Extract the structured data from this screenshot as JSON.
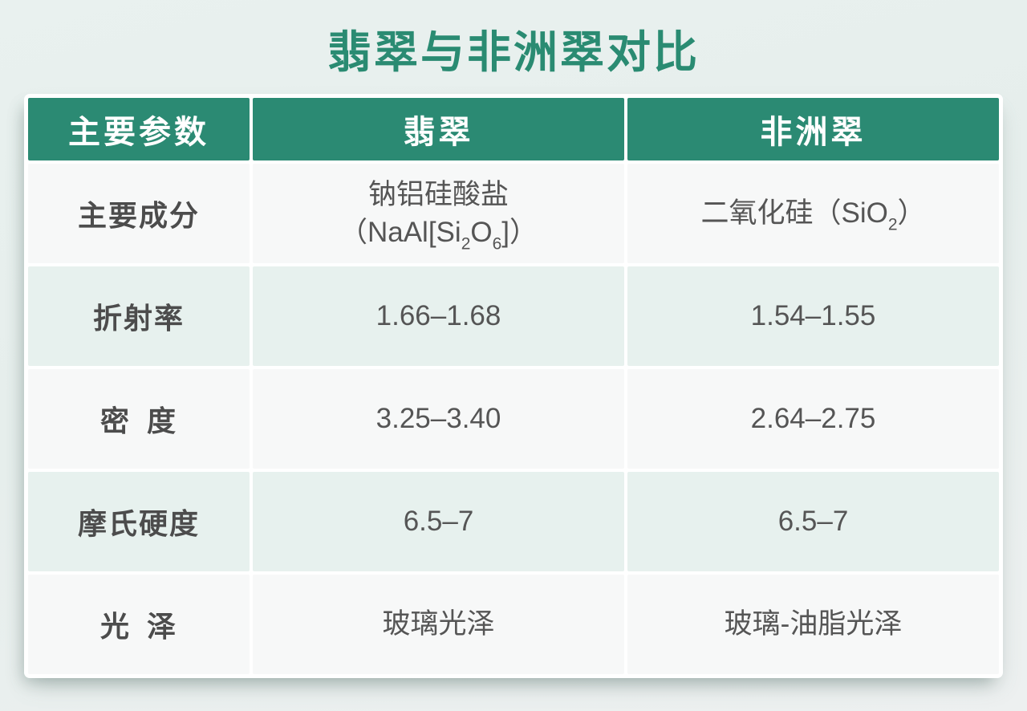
{
  "title": "翡翠与非洲翠对比",
  "colors": {
    "header_bg": "#2b8a73",
    "title_color": "#2a8b72",
    "row_plain": "#f7f8f8",
    "row_alt": "#e7f1ee",
    "label_color": "#4c4c4c",
    "value_color": "#555555"
  },
  "chart_data": {
    "type": "table",
    "title": "翡翠与非洲翠对比",
    "columns": [
      "主要参数",
      "翡翠",
      "非洲翠"
    ],
    "rows": [
      [
        "主要成分",
        "钠铝硅酸盐（NaAl[Si2O6]）",
        "二氧化硅（SiO2）"
      ],
      [
        "折射率",
        "1.66–1.68",
        "1.54–1.55"
      ],
      [
        "密度",
        "3.25–3.40",
        "2.64–2.75"
      ],
      [
        "摩氏硬度",
        "6.5–7",
        "6.5–7"
      ],
      [
        "光泽",
        "玻璃光泽",
        "玻璃-油脂光泽"
      ]
    ]
  },
  "table": {
    "headers": [
      "主要参数",
      "翡翠",
      "非洲翠"
    ],
    "rows": [
      {
        "param": "主要成分",
        "jade_line1": "钠铝硅酸盐",
        "jade_formula": [
          {
            "text": "（NaAl[Si"
          },
          {
            "text": "2",
            "sub": true
          },
          {
            "text": "O"
          },
          {
            "text": "6",
            "sub": true
          },
          {
            "text": "]）"
          }
        ],
        "african_rich": [
          {
            "text": "二氧化硅（SiO"
          },
          {
            "text": "2",
            "sub": true
          },
          {
            "text": "）"
          }
        ]
      },
      {
        "param": "折射率",
        "jade": "1.66–1.68",
        "african": "1.54–1.55"
      },
      {
        "param": "密 度",
        "jade": "3.25–3.40",
        "african": "2.64–2.75"
      },
      {
        "param": "摩氏硬度",
        "jade": "6.5–7",
        "african": "6.5–7"
      },
      {
        "param": "光 泽",
        "jade": "玻璃光泽",
        "african": "玻璃-油脂光泽"
      }
    ]
  }
}
